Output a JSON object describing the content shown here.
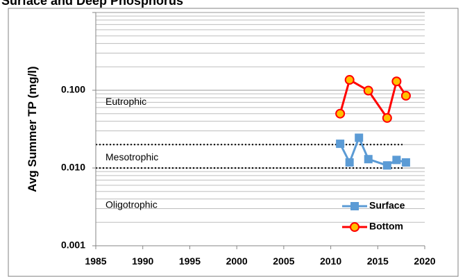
{
  "chart_data": {
    "type": "line",
    "title": "Surface and Deep Phosphorus",
    "xlabel": "",
    "ylabel": "Avg Summer TP (mg/l)",
    "x_axis": {
      "min": 1985,
      "max": 2020,
      "ticks": [
        "1985",
        "1990",
        "1995",
        "2000",
        "2005",
        "2010",
        "2015",
        "2020"
      ]
    },
    "y_axis": {
      "scale": "log",
      "min": 0.001,
      "max": 1.0,
      "tick_labels": [
        "0.001",
        "0.010",
        "0.100"
      ],
      "tick_values": [
        0.001,
        0.01,
        0.1
      ]
    },
    "grid": "horizontal minor log gridlines",
    "thresholds": [
      0.02,
      0.01
    ],
    "zones": [
      {
        "label": "Eutrophic",
        "y": 0.07
      },
      {
        "label": "Mesotrophic",
        "y": 0.0135
      },
      {
        "label": "Oligotrophic",
        "y": 0.0033
      }
    ],
    "series": [
      {
        "name": "Surface",
        "color": "#5b9bd5",
        "marker": "square",
        "x": [
          2011,
          2012,
          2013,
          2014,
          2016,
          2017,
          2018
        ],
        "y": [
          0.0205,
          0.0118,
          0.0245,
          0.013,
          0.0108,
          0.0127,
          0.0118
        ]
      },
      {
        "name": "Bottom",
        "color": "#ff0000",
        "marker_fill": "#ffc000",
        "marker": "circle",
        "x": [
          2011,
          2012,
          2014,
          2016,
          2017,
          2018
        ],
        "y": [
          0.05,
          0.136,
          0.099,
          0.044,
          0.13,
          0.085
        ]
      }
    ],
    "legend": "bottom-right"
  }
}
